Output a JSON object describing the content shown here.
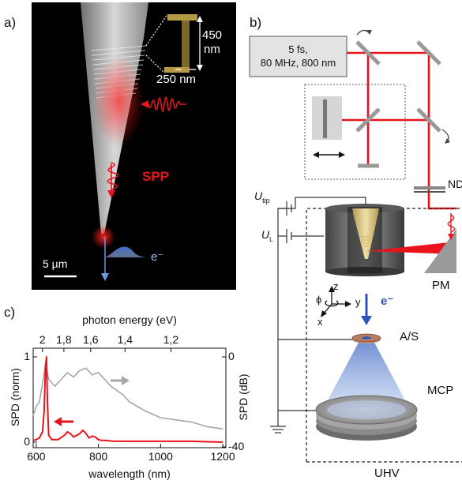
{
  "panel_a": {
    "label": "a)",
    "dim_height": "450",
    "dim_height_unit": "nm",
    "dim_width": "250 nm",
    "spp_label": "SPP",
    "electron_label": "e⁻",
    "scale_bar": "5 µm"
  },
  "panel_b": {
    "label": "b)",
    "laser_line1": "5 fs,",
    "laser_line2": "80 MHz, 800 nm",
    "nd_label": "ND",
    "u_tip_main": "U",
    "u_tip_sub": "tip",
    "u_l_main": "U",
    "u_l_sub": "L",
    "pm_label": "PM",
    "axis_z": "z",
    "axis_y": "y",
    "axis_x": "x",
    "axis_phi": "ϕ",
    "electron_label": "e⁻",
    "as_label": "A/S",
    "mcp_label": "MCP",
    "uhv_label": "UHV"
  },
  "panel_c": {
    "label": "c)",
    "top_axis_title": "photon energy (eV)",
    "top_ticks": [
      "2",
      "1,8",
      "1,6",
      "1,4",
      "1,2"
    ],
    "bottom_axis_title": "wavelength (nm)",
    "bottom_ticks": [
      "600",
      "800",
      "1000",
      "1200"
    ],
    "left_axis_title": "SPD (norm)",
    "left_ticks": [
      "0",
      "1"
    ],
    "right_axis_title": "SPD (dB)",
    "right_ticks": [
      "0",
      "-40"
    ]
  },
  "chart_data": {
    "type": "line",
    "xlabel": "wavelength (nm)",
    "ylabel": "SPD (norm)",
    "y2label": "SPD (dB)",
    "xlim": [
      590,
      1210
    ],
    "ylim": [
      0,
      1
    ],
    "y2lim": [
      -40,
      0
    ],
    "series": [
      {
        "axis": "left",
        "color": "#e8141b",
        "x": [
          590,
          600,
          610,
          620,
          625,
          630,
          633,
          636,
          640,
          650,
          670,
          690,
          700,
          710,
          720,
          740,
          750,
          760,
          770,
          780,
          790,
          800,
          810,
          820,
          850,
          900,
          1000,
          1100,
          1200
        ],
        "y": [
          0.02,
          0.03,
          0.05,
          0.12,
          0.35,
          0.9,
          1.0,
          0.45,
          0.08,
          0.03,
          0.03,
          0.08,
          0.12,
          0.1,
          0.06,
          0.1,
          0.14,
          0.1,
          0.05,
          0.07,
          0.06,
          0.03,
          0.02,
          0.02,
          0.01,
          0.01,
          0.01,
          0.01,
          0.0
        ]
      },
      {
        "axis": "right",
        "color": "#a6a6a6",
        "x": [
          590,
          600,
          610,
          620,
          630,
          640,
          660,
          680,
          700,
          720,
          740,
          760,
          780,
          800,
          820,
          840,
          860,
          880,
          900,
          950,
          1000,
          1050,
          1100,
          1150,
          1200
        ],
        "y": [
          -26,
          -22,
          -20,
          -12,
          -3,
          -10,
          -13,
          -10,
          -7,
          -9,
          -6,
          -5,
          -8,
          -7,
          -10,
          -13,
          -15,
          -17,
          -20,
          -24,
          -27,
          -28,
          -29,
          -31,
          -32
        ]
      }
    ]
  }
}
